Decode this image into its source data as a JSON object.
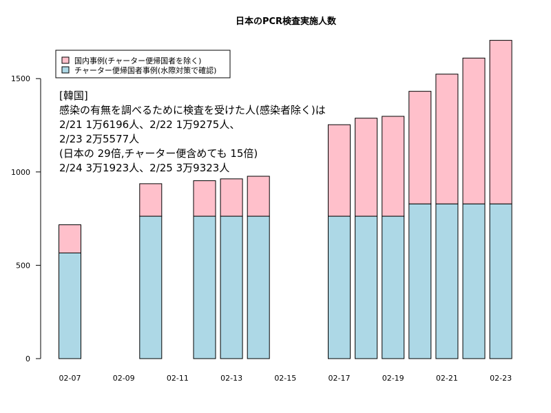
{
  "chart_data": {
    "type": "bar",
    "stacked": true,
    "title": "日本のPCR検査実施人数",
    "xlabel": "",
    "ylabel": "",
    "ylim": [
      0,
      1700
    ],
    "yticks": [
      0,
      500,
      1000,
      1500
    ],
    "categories": [
      "02-07",
      "02-08",
      "02-09",
      "02-10",
      "02-11",
      "02-12",
      "02-13",
      "02-14",
      "02-15",
      "02-16",
      "02-17",
      "02-18",
      "02-19",
      "02-20",
      "02-21",
      "02-22",
      "02-23"
    ],
    "xtick_labels": [
      "02-07",
      "02-09",
      "02-11",
      "02-13",
      "02-15",
      "02-17",
      "02-19",
      "02-21",
      "02-23"
    ],
    "series": [
      {
        "name": "チャーター便帰国者事例(水際対策で確認)",
        "color": "#ADD8E6",
        "values": [
          566,
          null,
          null,
          763,
          null,
          763,
          763,
          763,
          null,
          null,
          763,
          763,
          763,
          829,
          829,
          829,
          829
        ]
      },
      {
        "name": "国内事例(チャーター便帰国者を除く)",
        "color": "#FFC0CB",
        "values": [
          151,
          null,
          null,
          174,
          null,
          190,
          200,
          214,
          null,
          null,
          490,
          525,
          535,
          603,
          695,
          781,
          876
        ]
      }
    ],
    "legend": [
      {
        "label": "国内事例(チャーター便帰国者を除く)",
        "color": "#FFC0CB"
      },
      {
        "label": "チャーター便帰国者事例(水際対策で確認)",
        "color": "#ADD8E6"
      }
    ],
    "legend_position": "top-left",
    "annotation": [
      "[韓国]",
      "感染の有無を調べるために検査を受けた人(感染者除く)は",
      "2/21 1万6196人、2/22 1万9275人、",
      "2/23 2万5577人",
      "(日本の 29倍,チャーター便含めても 15倍)",
      "2/24 3万1923人、2/25 3万9323人"
    ]
  }
}
